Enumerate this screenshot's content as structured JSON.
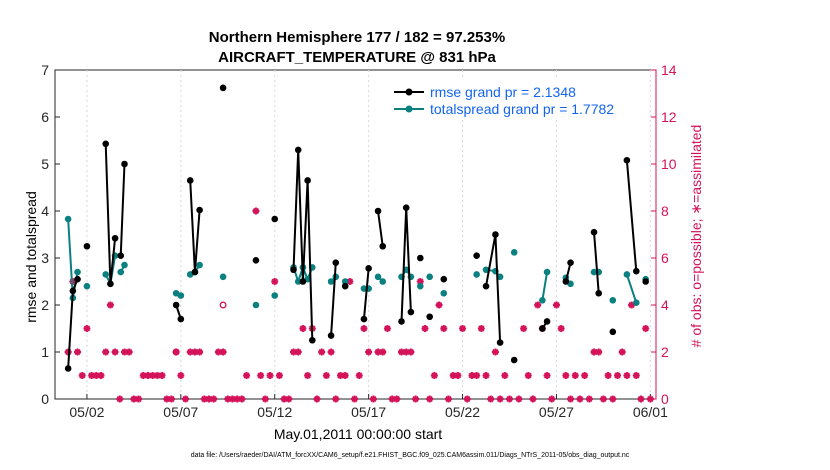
{
  "colors": {
    "rmse": "#000000",
    "spread": "#0a8080",
    "obs": "#d4135a",
    "legend_text": "#1464f0"
  },
  "chart_data": {
    "type": "line",
    "title_line1": "Northern Hemisphere 177 / 182 = 97.253%",
    "title_line2": "AIRCRAFT_TEMPERATURE @ 831 hPa",
    "xlabel": "May.01,2011 00:00:00 start",
    "ylabel_left": "rmse and totalspread",
    "ylabel_right": "# of obs: o=possible; ∗=assimilated",
    "xlim": [
      -0.7,
      31.3
    ],
    "ylim_left": [
      0,
      7
    ],
    "ylim_right": [
      0,
      14
    ],
    "x_ticks": [
      {
        "x": 1,
        "label": "05/02"
      },
      {
        "x": 6,
        "label": "05/07"
      },
      {
        "x": 11,
        "label": "05/12"
      },
      {
        "x": 16,
        "label": "05/17"
      },
      {
        "x": 21,
        "label": "05/22"
      },
      {
        "x": 26,
        "label": "05/27"
      },
      {
        "x": 31,
        "label": "06/01"
      }
    ],
    "y_ticks_left": [
      "0",
      "1",
      "2",
      "3",
      "4",
      "5",
      "6",
      "7"
    ],
    "y_ticks_right": [
      "0",
      "2",
      "4",
      "6",
      "8",
      "10",
      "12",
      "14"
    ],
    "footer": "data file: /Users/raeder/DAI/ATM_forcXX/CAM6_setup/f.e21.FHIST_BGC.f09_025.CAM6assim.011/Diags_NTrS_2011-05/obs_diag_output.nc",
    "series": [
      {
        "name": "rmse grand pr = 2.1348",
        "segments": [
          [
            [
              0.0,
              0.65
            ],
            [
              0.25,
              2.3
            ],
            [
              0.5,
              2.55
            ]
          ],
          [
            [
              1.0,
              3.25
            ]
          ],
          [
            [
              2.0,
              5.43
            ],
            [
              2.25,
              2.45
            ],
            [
              2.5,
              3.42
            ]
          ],
          [
            [
              2.8,
              3.05
            ],
            [
              3.0,
              5.0
            ]
          ],
          [
            [
              5.75,
              2.0
            ],
            [
              6.0,
              1.7
            ]
          ],
          [
            [
              6.5,
              4.65
            ],
            [
              6.75,
              2.7
            ],
            [
              7.0,
              4.02
            ]
          ],
          [
            [
              8.25,
              6.62
            ]
          ],
          [
            [
              10.0,
              2.95
            ]
          ],
          [
            [
              11.0,
              3.83
            ]
          ],
          [
            [
              12.0,
              2.75
            ],
            [
              12.25,
              5.3
            ],
            [
              12.5,
              2.5
            ],
            [
              12.75,
              4.65
            ],
            [
              13.0,
              1.25
            ]
          ],
          [
            [
              14.0,
              1.35
            ],
            [
              14.25,
              2.9
            ]
          ],
          [
            [
              14.75,
              2.4
            ]
          ],
          [
            [
              15.75,
              1.7
            ],
            [
              16.0,
              2.78
            ]
          ],
          [
            [
              16.5,
              4.0
            ],
            [
              16.75,
              3.25
            ]
          ],
          [
            [
              17.75,
              1.65
            ],
            [
              18.0,
              4.07
            ],
            [
              18.25,
              1.85
            ]
          ],
          [
            [
              18.75,
              3.0
            ]
          ],
          [
            [
              19.25,
              1.75
            ]
          ],
          [
            [
              20.0,
              2.55
            ]
          ],
          [
            [
              21.75,
              3.05
            ]
          ],
          [
            [
              22.25,
              2.4
            ],
            [
              22.75,
              3.5
            ],
            [
              23.0,
              1.2
            ]
          ],
          [
            [
              23.75,
              0.83
            ]
          ],
          [
            [
              25.25,
              1.5
            ],
            [
              25.5,
              1.65
            ]
          ],
          [
            [
              26.5,
              2.5
            ],
            [
              26.75,
              2.9
            ]
          ],
          [
            [
              28.0,
              3.55
            ],
            [
              28.25,
              2.25
            ]
          ],
          [
            [
              29.0,
              1.43
            ]
          ],
          [
            [
              29.75,
              5.08
            ],
            [
              30.25,
              2.72
            ]
          ],
          [
            [
              30.75,
              2.5
            ]
          ]
        ]
      },
      {
        "name": "totalspread grand pr = 1.7782",
        "segments": [
          [
            [
              0.0,
              3.83
            ],
            [
              0.25,
              2.15
            ],
            [
              0.5,
              2.7
            ]
          ],
          [
            [
              1.0,
              2.4
            ]
          ],
          [
            [
              2.0,
              2.65
            ],
            [
              2.25,
              2.45
            ],
            [
              2.5,
              3.05
            ]
          ],
          [
            [
              2.8,
              2.7
            ],
            [
              3.0,
              2.85
            ]
          ],
          [
            [
              5.75,
              2.25
            ],
            [
              6.0,
              2.2
            ]
          ],
          [
            [
              6.5,
              2.65
            ],
            [
              6.75,
              2.7
            ],
            [
              7.0,
              2.85
            ]
          ],
          [
            [
              8.25,
              2.6
            ]
          ],
          [
            [
              10.0,
              2.0
            ]
          ],
          [
            [
              11.0,
              2.2
            ]
          ],
          [
            [
              12.0,
              2.8
            ],
            [
              12.25,
              2.5
            ],
            [
              12.5,
              2.8
            ],
            [
              12.75,
              2.55
            ],
            [
              13.0,
              2.8
            ]
          ],
          [
            [
              14.0,
              2.5
            ],
            [
              14.25,
              2.6
            ]
          ],
          [
            [
              14.75,
              2.5
            ]
          ],
          [
            [
              15.75,
              2.35
            ],
            [
              16.0,
              2.35
            ]
          ],
          [
            [
              16.5,
              2.6
            ],
            [
              16.75,
              2.5
            ]
          ],
          [
            [
              17.75,
              2.6
            ],
            [
              18.0,
              2.75
            ],
            [
              18.25,
              2.6
            ]
          ],
          [
            [
              18.75,
              2.4
            ]
          ],
          [
            [
              19.25,
              2.6
            ]
          ],
          [
            [
              20.0,
              2.25
            ]
          ],
          [
            [
              21.75,
              2.65
            ]
          ],
          [
            [
              22.25,
              2.75
            ],
            [
              22.75,
              2.72
            ],
            [
              23.0,
              2.6
            ]
          ],
          [
            [
              23.75,
              3.12
            ]
          ],
          [
            [
              25.25,
              2.1
            ],
            [
              25.5,
              2.7
            ]
          ],
          [
            [
              26.5,
              2.58
            ],
            [
              26.75,
              2.45
            ]
          ],
          [
            [
              28.0,
              2.7
            ],
            [
              28.25,
              2.7
            ]
          ],
          [
            [
              29.0,
              2.1
            ]
          ],
          [
            [
              29.75,
              2.65
            ],
            [
              30.25,
              2.05
            ]
          ],
          [
            [
              30.75,
              2.55
            ]
          ]
        ]
      }
    ],
    "obs_assimilated": [
      [
        0.0,
        2
      ],
      [
        0.25,
        5
      ],
      [
        0.5,
        2
      ],
      [
        0.75,
        1
      ],
      [
        1.0,
        3
      ],
      [
        1.25,
        1
      ],
      [
        1.5,
        1
      ],
      [
        1.75,
        1
      ],
      [
        2.0,
        2
      ],
      [
        2.25,
        4
      ],
      [
        2.5,
        2
      ],
      [
        2.75,
        0
      ],
      [
        3.0,
        2
      ],
      [
        3.25,
        2
      ],
      [
        3.5,
        0
      ],
      [
        3.75,
        0
      ],
      [
        4.0,
        1
      ],
      [
        4.25,
        1
      ],
      [
        4.5,
        1
      ],
      [
        4.75,
        1
      ],
      [
        5.0,
        1
      ],
      [
        5.25,
        0
      ],
      [
        5.5,
        0
      ],
      [
        5.75,
        2
      ],
      [
        6.0,
        1
      ],
      [
        6.25,
        0
      ],
      [
        6.5,
        2
      ],
      [
        6.75,
        2
      ],
      [
        7.0,
        2
      ],
      [
        7.25,
        0
      ],
      [
        7.5,
        0
      ],
      [
        7.75,
        0
      ],
      [
        8.0,
        2
      ],
      [
        8.25,
        2
      ],
      [
        8.5,
        0
      ],
      [
        8.75,
        0
      ],
      [
        9.0,
        0
      ],
      [
        9.25,
        0
      ],
      [
        9.5,
        1
      ],
      [
        10.0,
        8
      ],
      [
        10.25,
        1
      ],
      [
        10.5,
        0
      ],
      [
        10.75,
        1
      ],
      [
        11.0,
        5
      ],
      [
        11.25,
        1
      ],
      [
        11.5,
        0
      ],
      [
        11.75,
        0
      ],
      [
        12.0,
        2
      ],
      [
        12.25,
        2
      ],
      [
        12.5,
        3
      ],
      [
        12.75,
        1
      ],
      [
        13.0,
        3
      ],
      [
        13.25,
        0
      ],
      [
        13.5,
        2
      ],
      [
        13.75,
        1
      ],
      [
        14.0,
        2
      ],
      [
        14.25,
        0
      ],
      [
        14.5,
        1
      ],
      [
        14.75,
        1
      ],
      [
        15.0,
        5
      ],
      [
        15.25,
        0
      ],
      [
        15.5,
        1
      ],
      [
        15.75,
        3
      ],
      [
        16.0,
        2
      ],
      [
        16.25,
        0
      ],
      [
        16.5,
        2
      ],
      [
        16.75,
        2
      ],
      [
        17.0,
        3
      ],
      [
        17.25,
        0
      ],
      [
        17.5,
        0
      ],
      [
        17.75,
        2
      ],
      [
        18.0,
        2
      ],
      [
        18.25,
        2
      ],
      [
        18.5,
        0
      ],
      [
        18.75,
        5
      ],
      [
        19.0,
        3
      ],
      [
        19.25,
        0
      ],
      [
        19.5,
        1
      ],
      [
        19.75,
        4
      ],
      [
        20.0,
        3
      ],
      [
        20.25,
        0
      ],
      [
        20.5,
        1
      ],
      [
        20.75,
        1
      ],
      [
        21.0,
        3
      ],
      [
        21.25,
        0
      ],
      [
        21.5,
        1
      ],
      [
        21.75,
        1
      ],
      [
        22.0,
        3
      ],
      [
        22.25,
        1
      ],
      [
        22.5,
        0
      ],
      [
        22.75,
        2
      ],
      [
        23.0,
        0
      ],
      [
        23.25,
        1
      ],
      [
        23.5,
        0
      ],
      [
        24.0,
        0
      ],
      [
        24.25,
        3
      ],
      [
        24.5,
        1
      ],
      [
        24.75,
        0
      ],
      [
        25.0,
        4
      ],
      [
        25.25,
        3
      ],
      [
        25.5,
        1
      ],
      [
        25.75,
        0
      ],
      [
        26.0,
        4
      ],
      [
        26.25,
        3
      ],
      [
        26.5,
        1
      ],
      [
        26.75,
        0
      ],
      [
        27.0,
        1
      ],
      [
        27.25,
        0
      ],
      [
        27.5,
        1
      ],
      [
        27.75,
        0
      ],
      [
        28.0,
        2
      ],
      [
        28.25,
        2
      ],
      [
        28.5,
        0
      ],
      [
        28.75,
        1
      ],
      [
        29.0,
        0
      ],
      [
        29.25,
        1
      ],
      [
        29.5,
        2
      ],
      [
        29.75,
        1
      ],
      [
        30.0,
        4
      ],
      [
        30.25,
        1
      ],
      [
        30.5,
        0
      ],
      [
        30.75,
        3
      ],
      [
        31.0,
        0
      ]
    ],
    "obs_possible": [
      [
        5.75,
        2
      ],
      [
        8.25,
        4
      ]
    ]
  }
}
